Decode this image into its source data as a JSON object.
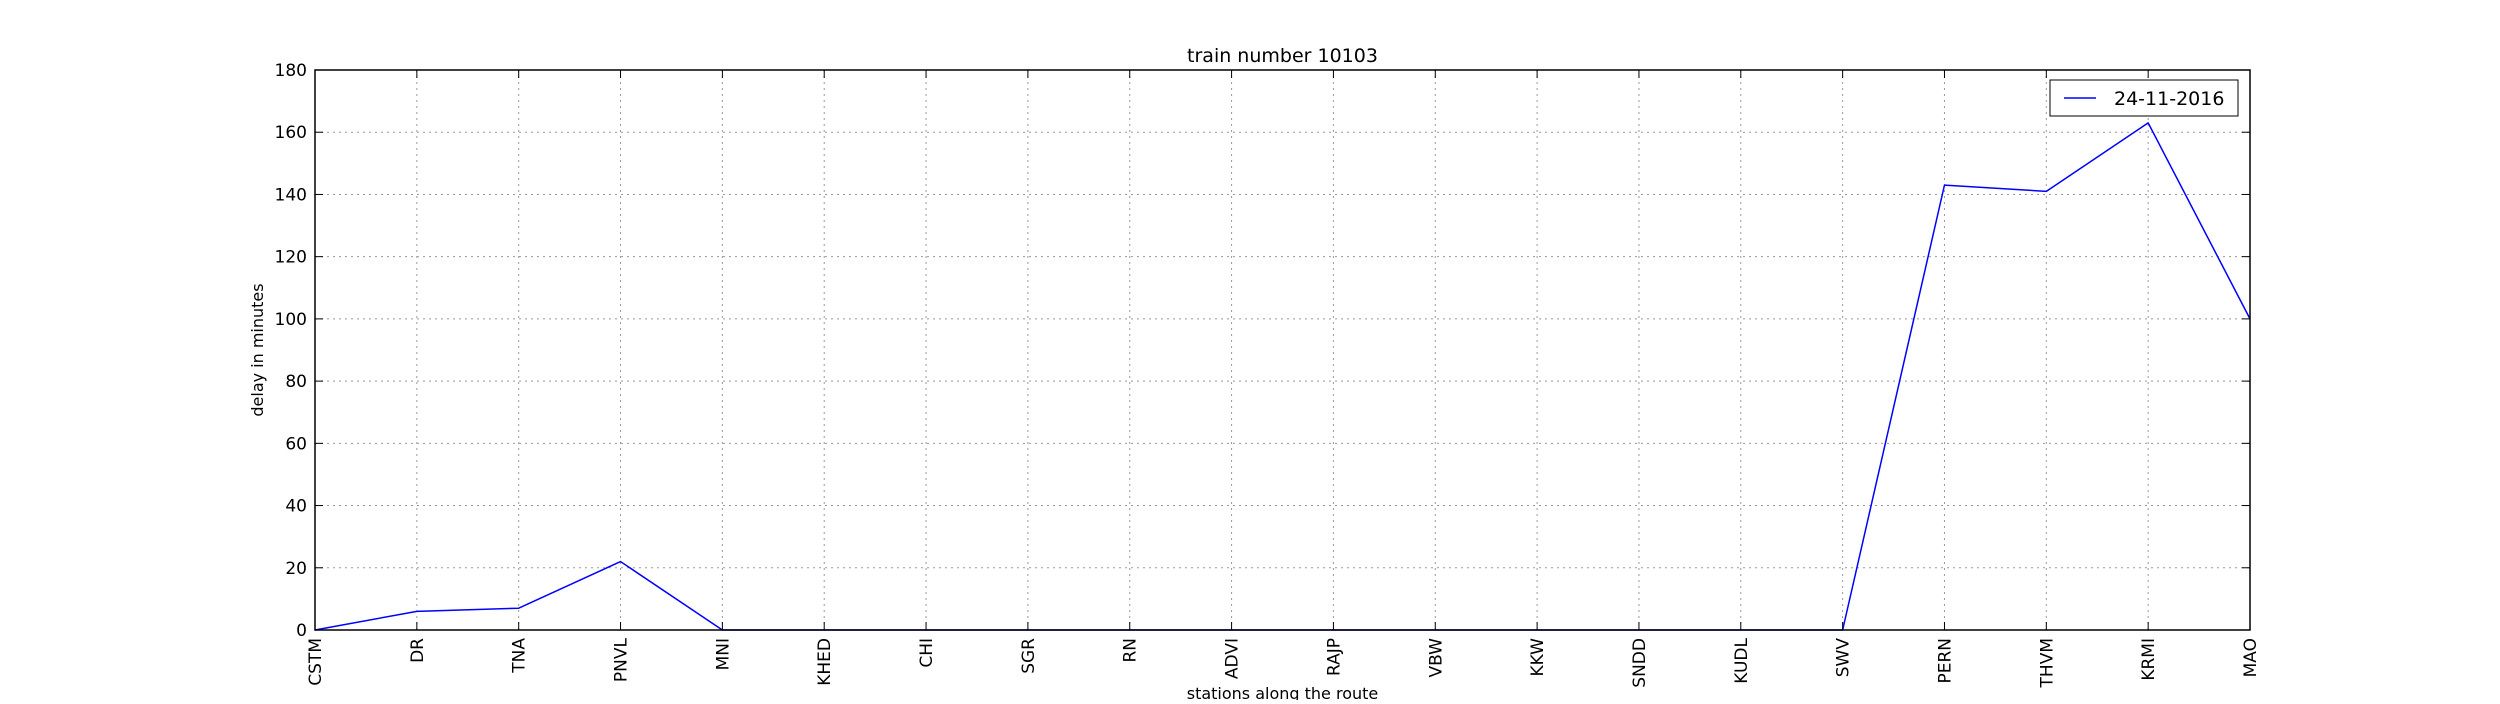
{
  "chart_data": {
    "type": "line",
    "title": "train number 10103",
    "xlabel": "stations along the route",
    "ylabel": "delay in minutes",
    "categories": [
      "CSTM",
      "DR",
      "TNA",
      "PNVL",
      "MNI",
      "KHED",
      "CHI",
      "SGR",
      "RN",
      "ADVI",
      "RAJP",
      "VBW",
      "KKW",
      "SNDD",
      "KUDL",
      "SWV",
      "PERN",
      "THVM",
      "KRMI",
      "MAO"
    ],
    "ylim": [
      0,
      180
    ],
    "yticks": [
      0,
      20,
      40,
      60,
      80,
      100,
      120,
      140,
      160,
      180
    ],
    "grid": true,
    "legend_position": "top-right",
    "series": [
      {
        "name": "24-11-2016",
        "color": "#0000ff",
        "values": [
          0,
          6,
          7,
          22,
          0,
          0,
          0,
          0,
          0,
          0,
          0,
          0,
          0,
          0,
          0,
          0,
          143,
          141,
          163,
          100
        ]
      }
    ]
  }
}
